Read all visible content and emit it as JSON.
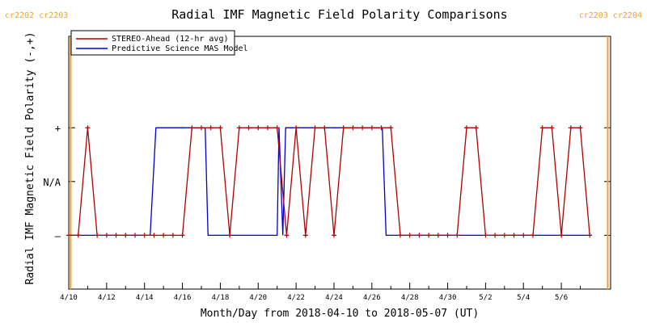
{
  "chart_data": {
    "type": "line",
    "title": "Radial IMF Magnetic Field Polarity Comparisons",
    "xlabel": "Month/Day from 2018-04-10 to 2018-05-07 (UT)",
    "ylabel": "Radial IMF Magnetic Field Polarity (-,+)",
    "xlim": [
      0,
      28.6
    ],
    "ylim": [
      -2,
      2.7
    ],
    "x_unit": "days since 2018-04-10 00:00 UT",
    "x_ticks": [
      {
        "value": 0,
        "label": "4/10"
      },
      {
        "value": 2,
        "label": "4/12"
      },
      {
        "value": 4,
        "label": "4/14"
      },
      {
        "value": 6,
        "label": "4/16"
      },
      {
        "value": 8,
        "label": "4/18"
      },
      {
        "value": 10,
        "label": "4/20"
      },
      {
        "value": 12,
        "label": "4/22"
      },
      {
        "value": 14,
        "label": "4/24"
      },
      {
        "value": 16,
        "label": "4/26"
      },
      {
        "value": 18,
        "label": "4/28"
      },
      {
        "value": 20,
        "label": "4/30"
      },
      {
        "value": 22,
        "label": "5/2"
      },
      {
        "value": 24,
        "label": "5/4"
      },
      {
        "value": 26,
        "label": "5/6"
      }
    ],
    "y_ticks": [
      {
        "value": 1,
        "label": "+"
      },
      {
        "value": 0,
        "label": "N/A"
      },
      {
        "value": -1,
        "label": "–"
      }
    ],
    "carrington_markers": [
      {
        "x": 0.1,
        "label": "cr2202 cr2203",
        "align": "left"
      },
      {
        "x": 28.45,
        "label": "cr2203 cr2204",
        "align": "right"
      }
    ],
    "colors": {
      "stereo": "#b00000",
      "model": "#0000c8",
      "carrington": "#f0a030",
      "axes": "#000000"
    },
    "legend_position": "top-left",
    "series": [
      {
        "name": "STEREO-Ahead (12-hr avg)",
        "color": "#b00000",
        "marker": "plus",
        "points": [
          [
            0,
            -1
          ],
          [
            0.5,
            -1
          ],
          [
            1,
            1
          ],
          [
            1.5,
            -1
          ],
          [
            2,
            -1
          ],
          [
            2.5,
            -1
          ],
          [
            3,
            -1
          ],
          [
            3.5,
            -1
          ],
          [
            4,
            -1
          ],
          [
            4.5,
            -1
          ],
          [
            5,
            -1
          ],
          [
            5.5,
            -1
          ],
          [
            6,
            -1
          ],
          [
            6.5,
            1
          ],
          [
            7,
            1
          ],
          [
            7.5,
            1
          ],
          [
            8,
            1
          ],
          [
            8.5,
            -1
          ],
          [
            9,
            1
          ],
          [
            9.5,
            1
          ],
          [
            10,
            1
          ],
          [
            10.5,
            1
          ],
          [
            11,
            1
          ],
          [
            11.5,
            -1
          ],
          [
            12,
            1
          ],
          [
            12.5,
            -1
          ],
          [
            13,
            1
          ],
          [
            13.5,
            1
          ],
          [
            14,
            -1
          ],
          [
            14.5,
            1
          ],
          [
            15,
            1
          ],
          [
            15.5,
            1
          ],
          [
            16,
            1
          ],
          [
            16.5,
            1
          ],
          [
            17,
            1
          ],
          [
            17.5,
            -1
          ],
          [
            18,
            -1
          ],
          [
            18.5,
            -1
          ],
          [
            19,
            -1
          ],
          [
            19.5,
            -1
          ],
          [
            20,
            -1
          ],
          [
            20.5,
            -1
          ],
          [
            21,
            1
          ],
          [
            21.5,
            1
          ],
          [
            22,
            -1
          ],
          [
            22.5,
            -1
          ],
          [
            23,
            -1
          ],
          [
            23.5,
            -1
          ],
          [
            24,
            -1
          ],
          [
            24.5,
            -1
          ],
          [
            25,
            1
          ],
          [
            25.5,
            1
          ],
          [
            26,
            -1
          ],
          [
            26.5,
            1
          ],
          [
            27,
            1
          ],
          [
            27.5,
            -1
          ]
        ]
      },
      {
        "name": "Predictive Science MAS Model",
        "color": "#0000c8",
        "marker": "none",
        "points": [
          [
            0,
            -1
          ],
          [
            4.3,
            -1
          ],
          [
            4.6,
            1
          ],
          [
            7.2,
            1
          ],
          [
            7.35,
            -1
          ],
          [
            11,
            -1
          ],
          [
            11.1,
            1
          ],
          [
            11.3,
            -1
          ],
          [
            11.45,
            1
          ],
          [
            16.55,
            1
          ],
          [
            16.75,
            -1
          ],
          [
            27.5,
            -1
          ]
        ]
      }
    ]
  }
}
